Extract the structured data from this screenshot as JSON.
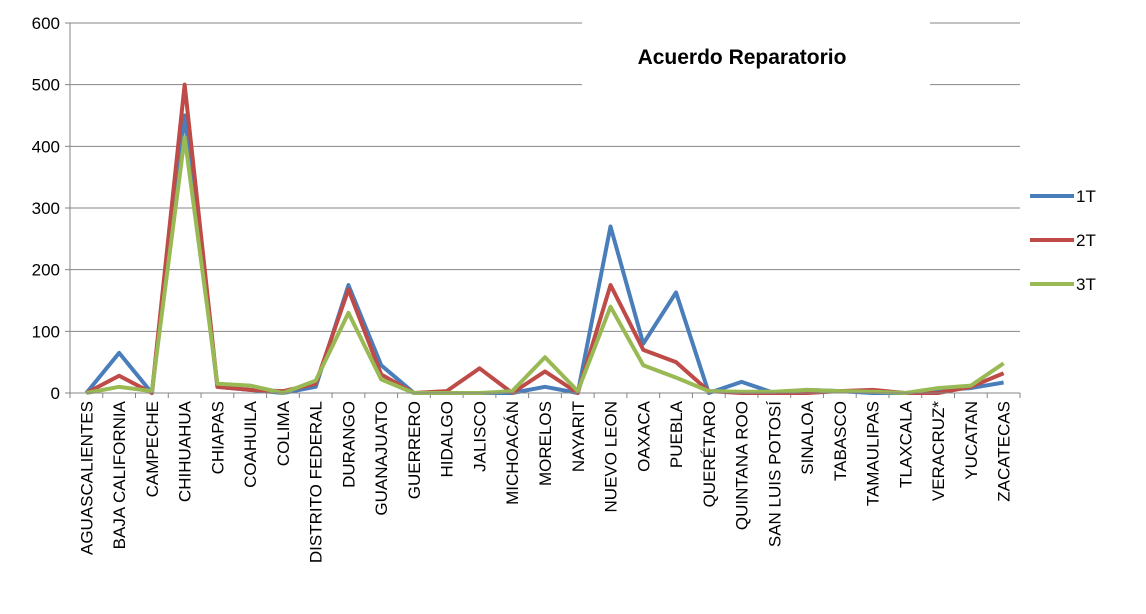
{
  "chart_data": {
    "type": "line",
    "title": "Acuerdo Reparatorio",
    "categories": [
      "AGUASCALIENTES",
      "BAJA CALIFORNIA",
      "CAMPECHE",
      "CHIHUAHUA",
      "CHIAPAS",
      "COAHUILA",
      "COLIMA",
      "DISTRITO FEDERAL",
      "DURANGO",
      "GUANAJUATO",
      "GUERRERO",
      "HIDALGO",
      "JALISCO",
      "MICHOACÁN",
      "MORELOS",
      "NAYARIT",
      "NUEVO LEON",
      "OAXACA",
      "PUEBLA",
      "QUERÉTARO",
      "QUINTANA ROO",
      "SAN LUIS POTOSÍ",
      "SINALOA",
      "TABASCO",
      "TAMAULIPAS",
      "TLAXCALA",
      "VERACRUZ*",
      "YUCATAN",
      "ZACATECAS"
    ],
    "series": [
      {
        "name": "1T",
        "color": "#4a7ebb",
        "values": [
          0,
          65,
          0,
          450,
          10,
          5,
          0,
          10,
          175,
          45,
          0,
          0,
          0,
          0,
          10,
          0,
          270,
          80,
          163,
          0,
          18,
          0,
          5,
          3,
          0,
          0,
          5,
          8,
          17
        ]
      },
      {
        "name": "2T",
        "color": "#be4b48",
        "values": [
          0,
          28,
          0,
          500,
          10,
          5,
          3,
          15,
          168,
          30,
          0,
          3,
          40,
          0,
          35,
          0,
          175,
          70,
          50,
          3,
          0,
          0,
          0,
          3,
          5,
          0,
          0,
          10,
          32
        ]
      },
      {
        "name": "3T",
        "color": "#98b954",
        "values": [
          0,
          10,
          3,
          415,
          15,
          12,
          0,
          20,
          130,
          22,
          0,
          0,
          0,
          3,
          58,
          3,
          140,
          45,
          25,
          3,
          2,
          2,
          5,
          3,
          2,
          0,
          8,
          12,
          48
        ]
      }
    ],
    "ylim": [
      0,
      600
    ],
    "yticks": [
      0,
      100,
      200,
      300,
      400,
      500,
      600
    ],
    "grid": true,
    "legend": "right"
  }
}
